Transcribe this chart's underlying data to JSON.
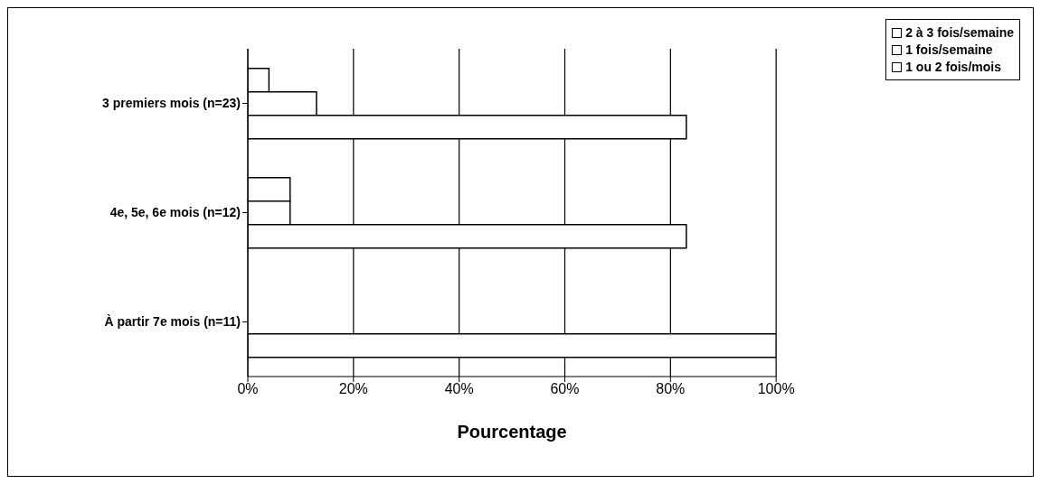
{
  "chart_data": {
    "type": "bar",
    "orientation": "horizontal",
    "xlabel": "Pourcentage",
    "categories": [
      "3 premiers mois (n=23)",
      "4e, 5e, 6e mois (n=12)",
      "À partir 7e mois (n=11)"
    ],
    "series": [
      {
        "name": "2 à 3 fois/semaine",
        "color": "#ffffff",
        "values": [
          4,
          8,
          0
        ]
      },
      {
        "name": "1 fois/semaine",
        "color": "#ffffff",
        "values": [
          13,
          8,
          0
        ]
      },
      {
        "name": "1 ou 2 fois/mois",
        "color": "#ffffff",
        "values": [
          83,
          83,
          100
        ]
      }
    ],
    "xlim": [
      0,
      100
    ],
    "xticks": [
      {
        "value": 0,
        "label": "0%"
      },
      {
        "value": 20,
        "label": "20%"
      },
      {
        "value": 40,
        "label": "40%"
      },
      {
        "value": 60,
        "label": "60%"
      },
      {
        "value": 80,
        "label": "80%"
      },
      {
        "value": 100,
        "label": "100%"
      }
    ],
    "grid": "x",
    "legend": "top right"
  }
}
